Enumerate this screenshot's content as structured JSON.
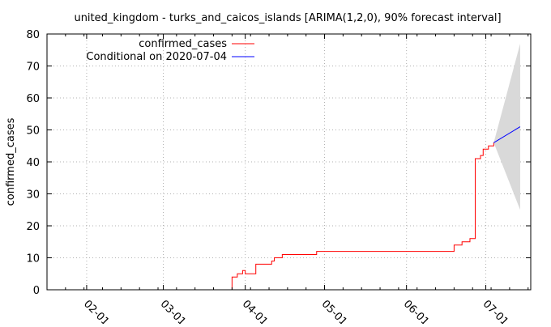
{
  "chart_data": {
    "type": "line",
    "title": "united_kingdom - turks_and_caicos_islands [ARIMA(1,2,0), 90% forecast interval]",
    "xlabel": "",
    "ylabel": "confirmed_cases",
    "x_type": "date",
    "xlim": [
      "2020-01-17",
      "2020-07-18"
    ],
    "ylim": [
      0,
      80
    ],
    "y_ticks": [
      0,
      10,
      20,
      30,
      40,
      50,
      60,
      70,
      80
    ],
    "x_ticks": [
      {
        "date": "2020-02-01",
        "label": "02-01"
      },
      {
        "date": "2020-03-01",
        "label": "03-01"
      },
      {
        "date": "2020-04-01",
        "label": "04-01"
      },
      {
        "date": "2020-05-01",
        "label": "05-01"
      },
      {
        "date": "2020-06-01",
        "label": "06-01"
      },
      {
        "date": "2020-07-01",
        "label": "07-01"
      }
    ],
    "grid": true,
    "legend_position": "top-left",
    "series": [
      {
        "name": "confirmed_cases",
        "color": "#ff0000",
        "points": [
          [
            "2020-03-26",
            0
          ],
          [
            "2020-03-27",
            4
          ],
          [
            "2020-03-28",
            4
          ],
          [
            "2020-03-29",
            5
          ],
          [
            "2020-03-30",
            5
          ],
          [
            "2020-03-31",
            6
          ],
          [
            "2020-04-01",
            5
          ],
          [
            "2020-04-02",
            5
          ],
          [
            "2020-04-03",
            5
          ],
          [
            "2020-04-04",
            5
          ],
          [
            "2020-04-05",
            8
          ],
          [
            "2020-04-10",
            8
          ],
          [
            "2020-04-11",
            9
          ],
          [
            "2020-04-12",
            10
          ],
          [
            "2020-04-14",
            10
          ],
          [
            "2020-04-15",
            11
          ],
          [
            "2020-04-27",
            11
          ],
          [
            "2020-04-28",
            12
          ],
          [
            "2020-06-18",
            12
          ],
          [
            "2020-06-19",
            14
          ],
          [
            "2020-06-21",
            14
          ],
          [
            "2020-06-22",
            15
          ],
          [
            "2020-06-24",
            15
          ],
          [
            "2020-06-25",
            16
          ],
          [
            "2020-06-26",
            16
          ],
          [
            "2020-06-27",
            41
          ],
          [
            "2020-06-28",
            41
          ],
          [
            "2020-06-29",
            42
          ],
          [
            "2020-06-30",
            44
          ],
          [
            "2020-07-01",
            44
          ],
          [
            "2020-07-02",
            45
          ],
          [
            "2020-07-03",
            45
          ],
          [
            "2020-07-04",
            46
          ]
        ]
      },
      {
        "name": "Conditional on 2020-07-04",
        "color": "#0000ff",
        "points": [
          [
            "2020-07-04",
            46
          ],
          [
            "2020-07-14",
            51
          ]
        ]
      }
    ],
    "forecast_interval": {
      "level": "90%",
      "color": "#d9d9d9",
      "upper": [
        [
          "2020-07-04",
          46
        ],
        [
          "2020-07-14",
          77
        ]
      ],
      "lower": [
        [
          "2020-07-04",
          46
        ],
        [
          "2020-07-14",
          25
        ]
      ]
    }
  }
}
